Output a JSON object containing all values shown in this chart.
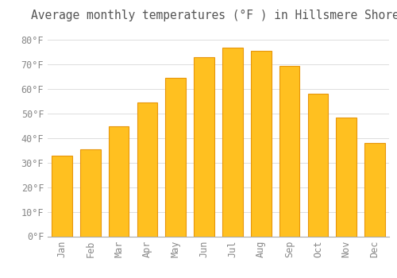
{
  "title": "Average monthly temperatures (°F ) in Hillsmere Shores",
  "months": [
    "Jan",
    "Feb",
    "Mar",
    "Apr",
    "May",
    "Jun",
    "Jul",
    "Aug",
    "Sep",
    "Oct",
    "Nov",
    "Dec"
  ],
  "values": [
    33,
    35.5,
    45,
    54.5,
    64.5,
    73,
    77,
    75.5,
    69.5,
    58,
    48.5,
    38
  ],
  "bar_color": "#FFC020",
  "bar_edge_color": "#E8960A",
  "background_color": "#FFFFFF",
  "grid_color": "#DDDDDD",
  "text_color": "#888888",
  "title_color": "#555555",
  "ylim": [
    0,
    85
  ],
  "ytick_values": [
    0,
    10,
    20,
    30,
    40,
    50,
    60,
    70,
    80
  ],
  "title_fontsize": 10.5,
  "tick_fontsize": 8.5,
  "bar_width": 0.72
}
